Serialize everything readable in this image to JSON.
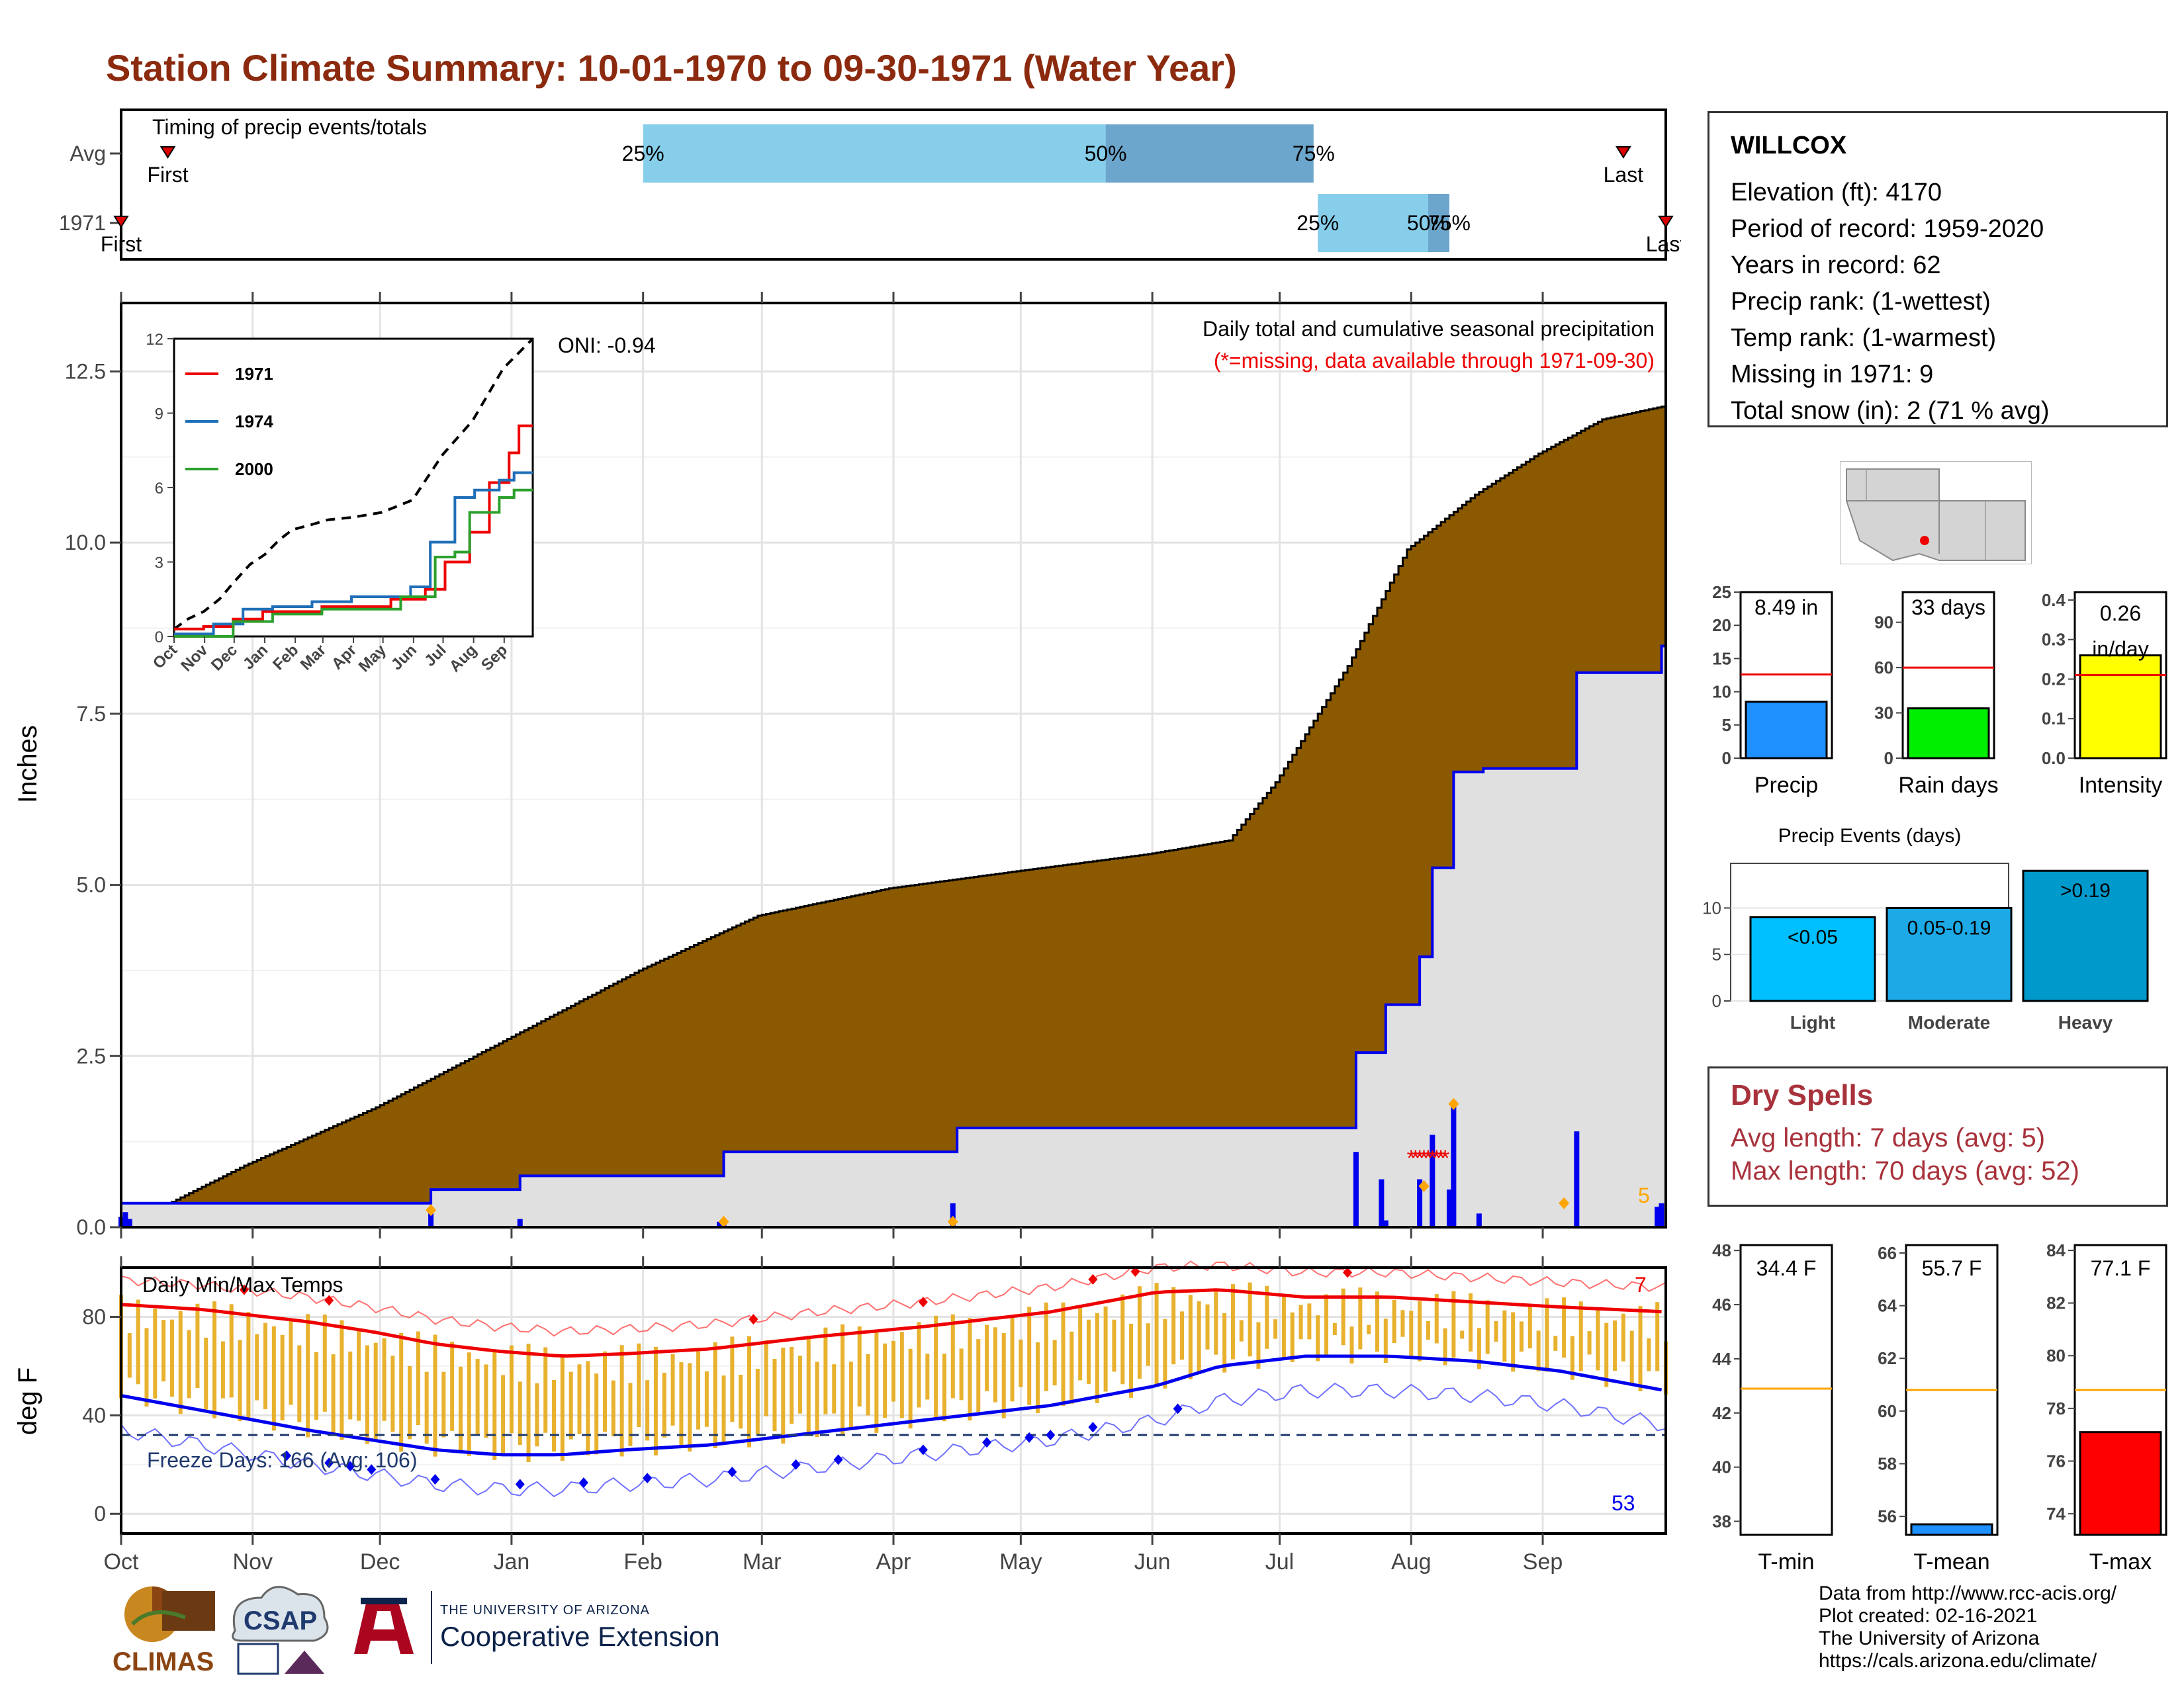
{
  "title": "Station Climate Summary: 10-01-1970 to 09-30-1971 (Water Year)",
  "timing": {
    "label": "Timing of precip events/totals",
    "rows": [
      {
        "name": "Avg",
        "first_label": "First",
        "last_label": "Last",
        "first_doy": 12,
        "last_doy": 355,
        "p25_doy": 124,
        "p50_doy": 233,
        "p75_doy": 282,
        "pct_labels": [
          "25%",
          "50%",
          "75%"
        ]
      },
      {
        "name": "1971",
        "first_label": "First",
        "last_label": "Last",
        "first_doy": 1,
        "last_doy": 365,
        "p25_doy": 283,
        "p50_doy": 309,
        "p75_doy": 314,
        "pct_labels": [
          "25%",
          "50%",
          "75%"
        ]
      }
    ]
  },
  "precip": {
    "ylabel": "Inches",
    "yticks": [
      "0.0",
      "2.5",
      "5.0",
      "7.5",
      "10.0",
      "12.5"
    ],
    "subtitle": "Daily total and cumulative seasonal precipitation",
    "missing_note": "(*=missing, data available through 1971-09-30)",
    "oni": "ONI: -0.94",
    "snow_count": "5"
  },
  "months": [
    "Oct",
    "Nov",
    "Dec",
    "Jan",
    "Feb",
    "Mar",
    "Apr",
    "May",
    "Jun",
    "Jul",
    "Aug",
    "Sep"
  ],
  "temps": {
    "title": "Daily Min/Max Temps",
    "ylabel": "deg F",
    "yticks": [
      "0",
      "40",
      "80"
    ],
    "freeze_label": "Freeze Days: 166 (Avg: 106)",
    "max_count": "7",
    "min_count": "53"
  },
  "inset": {
    "legend": [
      "1971",
      "1974",
      "2000"
    ],
    "yticks": [
      "0",
      "3",
      "6",
      "9",
      "12"
    ],
    "xticks": [
      "Oct",
      "Nov",
      "Dec",
      "Jan",
      "Feb",
      "Mar",
      "Apr",
      "May",
      "Jun",
      "Jul",
      "Aug",
      "Sep"
    ]
  },
  "station": {
    "name": "WILLCOX",
    "rows": [
      "Elevation (ft): 4170",
      "Period of record: 1959-2020",
      "Years in record: 62",
      "Precip rank:  (1-wettest)",
      "Temp rank:  (1-warmest)",
      "Missing in 1971: 9",
      "Total snow (in): 2 (71 % avg)"
    ]
  },
  "summary_bars": [
    {
      "label": "Precip",
      "value_label": "8.49 in",
      "value": 8.49,
      "avg": 12.6,
      "ymax": 25,
      "ticks": [
        "0",
        "5",
        "10",
        "15",
        "20",
        "25"
      ],
      "tick_values": [
        0,
        5,
        10,
        15,
        20,
        25
      ],
      "color": "#1E90FF"
    },
    {
      "label": "Rain days",
      "value_label": "33 days",
      "value": 33,
      "avg": 60,
      "ymax": 110,
      "ticks": [
        "0",
        "30",
        "60",
        "90"
      ],
      "tick_values": [
        0,
        30,
        60,
        90
      ],
      "color": "#00EE00"
    },
    {
      "label": "Intensity",
      "value_label": "0.26 in/day",
      "value": 0.26,
      "avg": 0.21,
      "ymax": 0.42,
      "ticks": [
        "0.0",
        "0.1",
        "0.2",
        "0.3",
        "0.4"
      ],
      "tick_values": [
        0,
        0.1,
        0.2,
        0.3,
        0.4
      ],
      "color": "#FFFF00"
    }
  ],
  "precip_events": {
    "title": "Precip Events (days)",
    "ticks": [
      "0",
      "5",
      "10"
    ],
    "bars": [
      {
        "label": "Light",
        "bin": "<0.05",
        "value": 9,
        "color": "#00BFFF"
      },
      {
        "label": "Moderate",
        "bin": "0.05-0.19",
        "value": 10,
        "color": "#1CA9E6"
      },
      {
        "label": "Heavy",
        "bin": ">0.19",
        "value": 14,
        "color": "#0099CC"
      }
    ]
  },
  "dry_spells": {
    "title": "Dry Spells",
    "avg_length": "Avg length: 7 days (avg: 5)",
    "max_length": "Max length: 70 days (avg: 52)"
  },
  "temp_bars": [
    {
      "label": "T-min",
      "value_label": "34.4 F",
      "value": 34.4,
      "avg": 42.9,
      "ymin": 37.5,
      "ymax": 48.2,
      "ticks": [
        "38",
        "40",
        "42",
        "44",
        "46",
        "48"
      ],
      "tick_values": [
        38,
        40,
        42,
        44,
        46,
        48
      ],
      "color": "#1E90FF"
    },
    {
      "label": "T-mean",
      "value_label": "55.7 F",
      "value": 55.7,
      "avg": 60.8,
      "ymin": 55.3,
      "ymax": 66.3,
      "ticks": [
        "56",
        "58",
        "60",
        "62",
        "64",
        "66"
      ],
      "tick_values": [
        56,
        58,
        60,
        62,
        64,
        66
      ],
      "color": "#1E90FF"
    },
    {
      "label": "T-max",
      "value_label": "77.1 F",
      "value": 77.1,
      "avg": 78.7,
      "ymin": 73.2,
      "ymax": 84.2,
      "ticks": [
        "74",
        "76",
        "78",
        "80",
        "82",
        "84"
      ],
      "tick_values": [
        74,
        76,
        78,
        80,
        82,
        84
      ],
      "color": "#FF0000"
    }
  ],
  "credits": [
    "Data from http://www.rcc-acis.org/",
    "Plot created: 02-16-2021",
    "The University of Arizona",
    "https://cals.arizona.edu/climate/"
  ],
  "logos": {
    "climas": "CLIMAS",
    "csap": "CSAP",
    "ua_top": "THE UNIVERSITY OF ARIZONA",
    "ua_bottom": "Cooperative Extension"
  },
  "chart_data": [
    {
      "type": "area",
      "title": "Daily total and cumulative seasonal precipitation",
      "ylabel": "Inches",
      "ylim": [
        0,
        13.5
      ],
      "x_unit": "day of water year (1 = Oct 1)",
      "avg_cumulative": {
        "x": [
          1,
          30,
          61,
          92,
          123,
          151,
          182,
          212,
          243,
          262,
          273,
          290,
          304,
          320,
          335,
          350,
          365
        ],
        "y": [
          0.0,
          0.9,
          1.75,
          2.75,
          3.75,
          4.55,
          4.95,
          5.2,
          5.45,
          5.65,
          6.5,
          8.2,
          9.9,
          10.7,
          11.3,
          11.8,
          12.0
        ]
      },
      "year_cumulative": {
        "x": [
          1,
          73,
          74,
          94,
          95,
          142,
          143,
          197,
          198,
          291,
          292,
          298,
          299,
          306,
          307,
          309,
          310,
          314,
          315,
          321,
          322,
          343,
          344,
          363,
          364,
          365
        ],
        "y": [
          0.35,
          0.35,
          0.55,
          0.55,
          0.75,
          0.75,
          1.1,
          1.1,
          1.45,
          1.45,
          2.55,
          2.55,
          3.25,
          3.25,
          3.95,
          3.95,
          5.25,
          5.25,
          6.65,
          6.65,
          6.7,
          6.7,
          8.1,
          8.1,
          8.49,
          8.49
        ]
      },
      "daily": {
        "x": [
          1,
          2,
          3,
          74,
          95,
          142,
          143,
          197,
          292,
          298,
          299,
          307,
          310,
          314,
          315,
          321,
          344,
          363,
          364
        ],
        "y": [
          0.15,
          0.22,
          0.12,
          0.2,
          0.12,
          0.08,
          0.12,
          0.35,
          1.1,
          0.7,
          0.1,
          0.7,
          1.35,
          0.55,
          1.85,
          0.2,
          1.4,
          0.3,
          0.35
        ]
      },
      "missing_days": [
        305,
        306,
        307,
        308,
        309,
        310,
        311,
        312,
        313
      ]
    },
    {
      "type": "line",
      "title": "Daily Min/Max Temps",
      "ylabel": "deg F",
      "ylim": [
        -8,
        100
      ],
      "freeze_line": 32,
      "series": [
        {
          "name": "",
          "x": [
            1,
            20,
            45,
            60,
            75,
            90,
            105,
            120,
            140,
            165,
            190,
            220,
            245,
            260,
            280,
            300,
            320,
            340,
            365
          ],
          "y": [
            85,
            83,
            78,
            74,
            69,
            66,
            64,
            65,
            67,
            72,
            76,
            82,
            90,
            91,
            88,
            88,
            86,
            84,
            82
          ]
        },
        {
          "name": "",
          "x": [
            1,
            20,
            45,
            60,
            75,
            90,
            105,
            120,
            140,
            165,
            190,
            220,
            245,
            260,
            280,
            300,
            320,
            340,
            365
          ],
          "y": [
            48,
            42,
            34,
            30,
            26,
            24,
            24,
            26,
            28,
            33,
            38,
            44,
            52,
            60,
            64,
            64,
            62,
            58,
            50
          ]
        }
      ]
    },
    {
      "type": "line",
      "title": "",
      "ylim": [
        0,
        12
      ],
      "series": [
        {
          "name": "",
          "x": [
            1,
            15,
            31,
            47,
            62,
            78,
            93,
            108,
            121,
            140,
            157,
            182,
            212,
            243,
            273,
            304,
            335,
            365
          ],
          "y": [
            0.3,
            0.7,
            1.0,
            1.5,
            2.2,
            2.9,
            3.3,
            3.9,
            4.3,
            4.5,
            4.7,
            4.8,
            5.0,
            5.5,
            7.3,
            8.7,
            10.8,
            12.0
          ]
        },
        {
          "name": "1971",
          "x": [
            1,
            30,
            31,
            60,
            61,
            90,
            91,
            150,
            151,
            220,
            221,
            255,
            256,
            275,
            276,
            300,
            301,
            320,
            321,
            340,
            341,
            350,
            351,
            365
          ],
          "y": [
            0.3,
            0.3,
            0.4,
            0.4,
            0.7,
            0.7,
            1.0,
            1.0,
            1.2,
            1.2,
            1.5,
            1.5,
            1.9,
            1.9,
            3.0,
            3.0,
            4.2,
            4.2,
            6.2,
            6.2,
            7.4,
            7.4,
            8.49,
            8.49
          ]
        },
        {
          "name": "1974",
          "x": [
            1,
            40,
            41,
            70,
            71,
            100,
            101,
            140,
            141,
            180,
            181,
            240,
            241,
            260,
            261,
            285,
            286,
            305,
            306,
            330,
            331,
            345,
            346,
            365
          ],
          "y": [
            0.1,
            0.1,
            0.5,
            0.5,
            1.1,
            1.1,
            1.2,
            1.2,
            1.4,
            1.4,
            1.6,
            1.6,
            2.0,
            2.0,
            3.8,
            3.8,
            5.6,
            5.6,
            5.9,
            5.9,
            6.3,
            6.3,
            6.6,
            6.6
          ]
        },
        {
          "name": "2000",
          "x": [
            1,
            60,
            61,
            100,
            101,
            150,
            151,
            230,
            231,
            265,
            266,
            285,
            286,
            300,
            301,
            330,
            331,
            345,
            346,
            365
          ],
          "y": [
            0.0,
            0.0,
            0.6,
            0.6,
            0.9,
            0.9,
            1.1,
            1.1,
            1.6,
            1.6,
            3.2,
            3.2,
            3.4,
            3.4,
            5.0,
            5.0,
            5.6,
            5.6,
            5.9,
            5.9
          ]
        }
      ]
    },
    {
      "type": "bar",
      "categories": [
        "Precip",
        "Rain days",
        "Intensity"
      ],
      "values": [
        8.49,
        33,
        0.26
      ],
      "avg": [
        12.6,
        60,
        0.21
      ]
    },
    {
      "type": "bar",
      "title": "Precip Events (days)",
      "categories": [
        "Light",
        "Moderate",
        "Heavy"
      ],
      "values": [
        9,
        10,
        14
      ]
    },
    {
      "type": "bar",
      "categories": [
        "T-min",
        "T-mean",
        "T-max"
      ],
      "values": [
        34.4,
        55.7,
        77.1
      ],
      "avg": [
        42.9,
        60.8,
        78.7
      ]
    }
  ]
}
